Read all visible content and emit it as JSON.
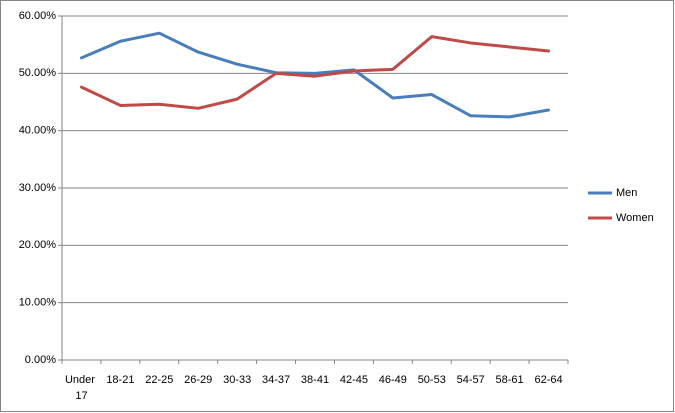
{
  "chart_data": {
    "type": "line",
    "categories": [
      "Under 17",
      "18-21",
      "22-25",
      "26-29",
      "30-33",
      "34-37",
      "38-41",
      "42-45",
      "46-49",
      "50-53",
      "54-57",
      "58-61",
      "62-64"
    ],
    "series": [
      {
        "name": "Men",
        "color": "#4a7ebb",
        "values": [
          52.7,
          55.6,
          57.0,
          53.7,
          51.6,
          50.1,
          50.0,
          50.6,
          45.7,
          46.3,
          42.6,
          42.4,
          43.6
        ]
      },
      {
        "name": "Women",
        "color": "#be4b48",
        "values": [
          47.6,
          44.4,
          44.6,
          43.9,
          45.5,
          50.0,
          49.5,
          50.4,
          50.7,
          56.4,
          55.3,
          54.6,
          53.9
        ]
      }
    ],
    "ylim": [
      0,
      60
    ],
    "yticks": [
      {
        "value": 0,
        "label": "0.00%"
      },
      {
        "value": 10,
        "label": "10.00%"
      },
      {
        "value": 20,
        "label": "20.00%"
      },
      {
        "value": 30,
        "label": "30.00%"
      },
      {
        "value": 40,
        "label": "40.00%"
      },
      {
        "value": 50,
        "label": "50.00%"
      },
      {
        "value": 60,
        "label": "60.00%"
      }
    ],
    "grid": true,
    "legend": "right"
  }
}
